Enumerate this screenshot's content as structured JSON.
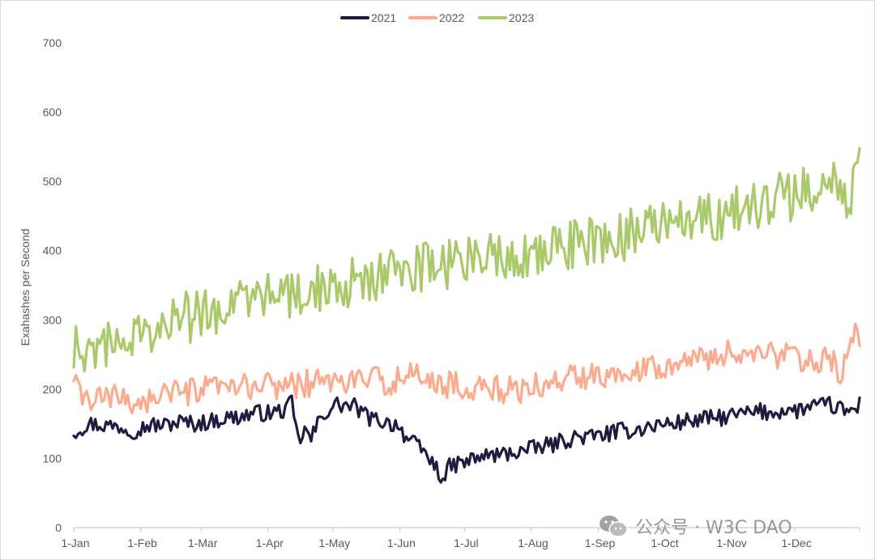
{
  "chart_data": {
    "type": "line",
    "title": "",
    "ylabel": "Exahashes per Second",
    "xlabel": "",
    "ylim": [
      0,
      700
    ],
    "yticks": [
      "0",
      "100",
      "200",
      "300",
      "400",
      "500",
      "600",
      "700"
    ],
    "xticks": [
      "1-Jan",
      "1-Feb",
      "1-Mar",
      "1-Apr",
      "1-May",
      "1-Jun",
      "1-Jul",
      "1-Aug",
      "1-Sep",
      "1-Oct",
      "1-Nov",
      "1-Dec"
    ],
    "xtick_days": [
      0,
      31,
      59,
      90,
      120,
      151,
      181,
      212,
      243,
      273,
      304,
      334
    ],
    "grid": false,
    "legend": "top-center",
    "series": [
      {
        "name": "2021",
        "color": "#231a40",
        "points": [
          [
            0,
            138
          ],
          [
            7,
            150
          ],
          [
            14,
            148
          ],
          [
            21,
            146
          ],
          [
            28,
            140
          ],
          [
            35,
            148
          ],
          [
            42,
            148
          ],
          [
            49,
            153
          ],
          [
            56,
            150
          ],
          [
            63,
            153
          ],
          [
            70,
            158
          ],
          [
            77,
            160
          ],
          [
            84,
            166
          ],
          [
            91,
            165
          ],
          [
            98,
            170
          ],
          [
            101,
            180
          ],
          [
            104,
            125
          ],
          [
            107,
            140
          ],
          [
            110,
            128
          ],
          [
            113,
            150
          ],
          [
            116,
            165
          ],
          [
            119,
            172
          ],
          [
            122,
            178
          ],
          [
            126,
            176
          ],
          [
            130,
            175
          ],
          [
            134,
            165
          ],
          [
            138,
            156
          ],
          [
            142,
            155
          ],
          [
            146,
            150
          ],
          [
            150,
            150
          ],
          [
            154,
            130
          ],
          [
            158,
            120
          ],
          [
            162,
            110
          ],
          [
            166,
            95
          ],
          [
            169,
            80
          ],
          [
            172,
            70
          ],
          [
            174,
            88
          ],
          [
            178,
            92
          ],
          [
            182,
            95
          ],
          [
            186,
            100
          ],
          [
            190,
            103
          ],
          [
            194,
            105
          ],
          [
            198,
            105
          ],
          [
            202,
            108
          ],
          [
            206,
            110
          ],
          [
            210,
            112
          ],
          [
            214,
            115
          ],
          [
            218,
            118
          ],
          [
            222,
            120
          ],
          [
            226,
            125
          ],
          [
            230,
            128
          ],
          [
            234,
            132
          ],
          [
            238,
            130
          ],
          [
            242,
            133
          ],
          [
            246,
            135
          ],
          [
            250,
            137
          ],
          [
            254,
            140
          ],
          [
            258,
            140
          ],
          [
            262,
            143
          ],
          [
            266,
            145
          ],
          [
            270,
            148
          ],
          [
            274,
            150
          ],
          [
            278,
            150
          ],
          [
            282,
            153
          ],
          [
            286,
            155
          ],
          [
            290,
            155
          ],
          [
            294,
            158
          ],
          [
            298,
            158
          ],
          [
            302,
            160
          ],
          [
            306,
            162
          ],
          [
            310,
            165
          ],
          [
            314,
            165
          ],
          [
            318,
            168
          ],
          [
            322,
            165
          ],
          [
            326,
            168
          ],
          [
            330,
            170
          ],
          [
            334,
            168
          ],
          [
            338,
            172
          ],
          [
            342,
            175
          ],
          [
            346,
            175
          ],
          [
            350,
            178
          ],
          [
            354,
            172
          ],
          [
            358,
            168
          ],
          [
            362,
            170
          ],
          [
            364,
            178
          ]
        ]
      },
      {
        "name": "2022",
        "color": "#fbab8e",
        "points": [
          [
            0,
            205
          ],
          [
            7,
            182
          ],
          [
            14,
            186
          ],
          [
            21,
            188
          ],
          [
            28,
            182
          ],
          [
            35,
            184
          ],
          [
            42,
            198
          ],
          [
            49,
            190
          ],
          [
            56,
            197
          ],
          [
            63,
            199
          ],
          [
            70,
            200
          ],
          [
            77,
            202
          ],
          [
            84,
            204
          ],
          [
            91,
            205
          ],
          [
            98,
            206
          ],
          [
            105,
            207
          ],
          [
            112,
            210
          ],
          [
            119,
            212
          ],
          [
            126,
            210
          ],
          [
            133,
            215
          ],
          [
            140,
            212
          ],
          [
            147,
            212
          ],
          [
            154,
            215
          ],
          [
            160,
            222
          ],
          [
            167,
            210
          ],
          [
            174,
            206
          ],
          [
            180,
            205
          ],
          [
            187,
            202
          ],
          [
            194,
            200
          ],
          [
            201,
            198
          ],
          [
            208,
            200
          ],
          [
            215,
            204
          ],
          [
            222,
            210
          ],
          [
            229,
            215
          ],
          [
            236,
            219
          ],
          [
            243,
            222
          ],
          [
            250,
            225
          ],
          [
            257,
            230
          ],
          [
            264,
            232
          ],
          [
            271,
            234
          ],
          [
            278,
            240
          ],
          [
            285,
            242
          ],
          [
            292,
            245
          ],
          [
            299,
            248
          ],
          [
            306,
            252
          ],
          [
            313,
            255
          ],
          [
            320,
            250
          ],
          [
            327,
            248
          ],
          [
            334,
            246
          ],
          [
            341,
            244
          ],
          [
            348,
            240
          ],
          [
            352,
            236
          ],
          [
            355,
            200
          ],
          [
            358,
            250
          ],
          [
            361,
            280
          ],
          [
            364,
            275
          ]
        ]
      },
      {
        "name": "2023",
        "color": "#a9c96b",
        "points": [
          [
            0,
            265
          ],
          [
            7,
            262
          ],
          [
            14,
            268
          ],
          [
            21,
            272
          ],
          [
            28,
            280
          ],
          [
            35,
            282
          ],
          [
            42,
            290
          ],
          [
            49,
            305
          ],
          [
            56,
            302
          ],
          [
            63,
            310
          ],
          [
            70,
            318
          ],
          [
            77,
            325
          ],
          [
            84,
            330
          ],
          [
            91,
            332
          ],
          [
            98,
            335
          ],
          [
            105,
            335
          ],
          [
            112,
            340
          ],
          [
            119,
            345
          ],
          [
            126,
            352
          ],
          [
            133,
            358
          ],
          [
            140,
            362
          ],
          [
            147,
            368
          ],
          [
            154,
            372
          ],
          [
            161,
            376
          ],
          [
            168,
            378
          ],
          [
            175,
            380
          ],
          [
            182,
            386
          ],
          [
            189,
            390
          ],
          [
            196,
            395
          ],
          [
            203,
            394
          ],
          [
            210,
            398
          ],
          [
            217,
            402
          ],
          [
            224,
            405
          ],
          [
            231,
            410
          ],
          [
            238,
            412
          ],
          [
            245,
            418
          ],
          [
            252,
            420
          ],
          [
            259,
            425
          ],
          [
            266,
            430
          ],
          [
            273,
            432
          ],
          [
            280,
            438
          ],
          [
            287,
            442
          ],
          [
            294,
            448
          ],
          [
            301,
            452
          ],
          [
            308,
            456
          ],
          [
            315,
            462
          ],
          [
            322,
            468
          ],
          [
            329,
            478
          ],
          [
            336,
            480
          ],
          [
            343,
            490
          ],
          [
            350,
            498
          ],
          [
            356,
            505
          ],
          [
            360,
            450
          ],
          [
            362,
            545
          ],
          [
            364,
            550
          ]
        ]
      }
    ]
  },
  "watermark": {
    "text": "公众号 · W3C DAO"
  }
}
